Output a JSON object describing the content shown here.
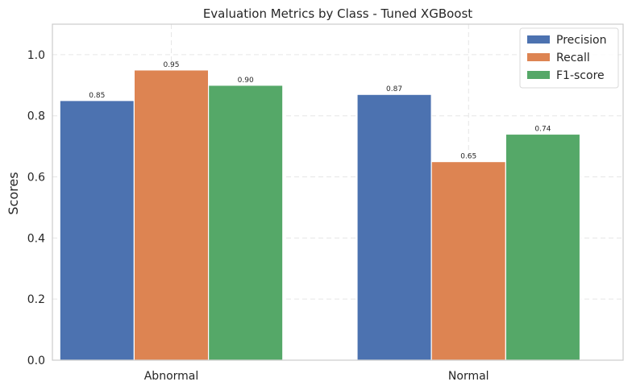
{
  "chart_data": {
    "type": "bar",
    "title": "Evaluation Metrics by Class - Tuned XGBoost",
    "xlabel": "",
    "ylabel": "Scores",
    "ylim": [
      0,
      1.1
    ],
    "yticks": [
      "0.0",
      "0.2",
      "0.4",
      "0.6",
      "0.8",
      "1.0"
    ],
    "categories": [
      "Abnormal",
      "Normal"
    ],
    "series": [
      {
        "name": "Precision",
        "values": [
          0.85,
          0.87
        ],
        "labels": [
          "0.85",
          "0.87"
        ],
        "color": "#4c72b0"
      },
      {
        "name": "Recall",
        "values": [
          0.95,
          0.65
        ],
        "labels": [
          "0.95",
          "0.65"
        ],
        "color": "#dd8452"
      },
      {
        "name": "F1-score",
        "values": [
          0.9,
          0.74
        ],
        "labels": [
          "0.90",
          "0.74"
        ],
        "color": "#55a868"
      }
    ],
    "grid": true,
    "legend_position": "top-right"
  }
}
